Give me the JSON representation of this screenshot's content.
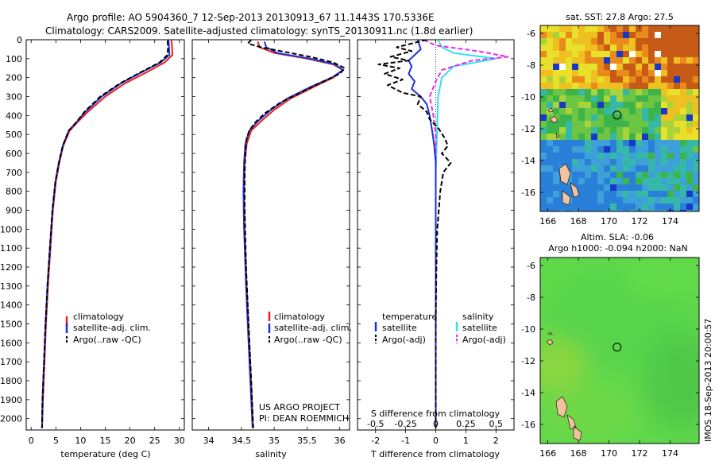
{
  "header": {
    "title_line1": "Argo profile: AO 5904360_7 12-Sep-2013 20130913_67 11.1443S 170.5336E",
    "title_line2": "Climatology: CARS2009. Satellite-adjusted climatology: synTS_20130911.nc (1.8d earlier)"
  },
  "colors": {
    "climatology": "#e8201e",
    "satellite": "#1f2fd9",
    "argo": "#000000",
    "sal_satellite": "#33e0f0",
    "sal_argo": "#e82ae8"
  },
  "chart_data": [
    {
      "type": "line",
      "id": "temperature-profile",
      "xlabel": "temperature (deg C)",
      "xlim": [
        -1,
        31
      ],
      "ylim": [
        2060,
        0
      ],
      "xticks": [
        "0",
        "5",
        "10",
        "15",
        "20",
        "25",
        "30"
      ],
      "yticks": [
        "0",
        "100",
        "200",
        "300",
        "400",
        "500",
        "600",
        "700",
        "800",
        "900",
        "1000",
        "1100",
        "1200",
        "1300",
        "1400",
        "1500",
        "1600",
        "1700",
        "1800",
        "1900",
        "2000"
      ],
      "legend": [
        "climatology",
        "satellite-adj. clim.",
        "Argo(..raw -QC)"
      ],
      "series": [
        {
          "name": "climatology",
          "color": "#e8201e",
          "points": [
            [
              28.4,
              0
            ],
            [
              28.5,
              40
            ],
            [
              28.6,
              80
            ],
            [
              27.0,
              120
            ],
            [
              23.5,
              170
            ],
            [
              19.0,
              230
            ],
            [
              15.0,
              300
            ],
            [
              11.5,
              380
            ],
            [
              9.2,
              440
            ],
            [
              7.8,
              480
            ],
            [
              6.5,
              560
            ],
            [
              5.7,
              650
            ],
            [
              5.0,
              750
            ],
            [
              4.4,
              900
            ],
            [
              3.9,
              1100
            ],
            [
              3.4,
              1300
            ],
            [
              3.0,
              1500
            ],
            [
              2.7,
              1700
            ],
            [
              2.4,
              1900
            ],
            [
              2.2,
              2050
            ]
          ]
        },
        {
          "name": "satellite-adj. clim.",
          "color": "#1f2fd9",
          "points": [
            [
              27.8,
              0
            ],
            [
              27.9,
              40
            ],
            [
              28.0,
              80
            ],
            [
              26.2,
              120
            ],
            [
              22.5,
              170
            ],
            [
              18.2,
              230
            ],
            [
              14.3,
              300
            ],
            [
              11.0,
              380
            ],
            [
              9.0,
              440
            ],
            [
              7.6,
              480
            ],
            [
              6.4,
              560
            ],
            [
              5.6,
              650
            ],
            [
              4.9,
              750
            ],
            [
              4.3,
              900
            ],
            [
              3.8,
              1100
            ],
            [
              3.3,
              1300
            ],
            [
              2.9,
              1500
            ],
            [
              2.6,
              1700
            ],
            [
              2.3,
              1900
            ],
            [
              2.2,
              2050
            ]
          ]
        },
        {
          "name": "Argo(..raw -QC)",
          "color": "#000000",
          "dashed": true,
          "points": [
            [
              27.6,
              5
            ],
            [
              27.7,
              40
            ],
            [
              27.6,
              80
            ],
            [
              26.0,
              120
            ],
            [
              22.3,
              170
            ],
            [
              18.0,
              230
            ],
            [
              14.0,
              300
            ],
            [
              10.8,
              380
            ],
            [
              9.0,
              440
            ],
            [
              7.6,
              480
            ],
            [
              6.4,
              560
            ],
            [
              5.6,
              650
            ],
            [
              4.9,
              750
            ],
            [
              4.3,
              900
            ],
            [
              3.8,
              1100
            ],
            [
              3.3,
              1300
            ],
            [
              2.9,
              1500
            ],
            [
              2.6,
              1700
            ],
            [
              2.3,
              1900
            ],
            [
              2.2,
              2050
            ]
          ]
        }
      ]
    },
    {
      "type": "line",
      "id": "salinity-profile",
      "xlabel": "salinity",
      "xlim": [
        33.75,
        36.15
      ],
      "ylim": [
        2060,
        0
      ],
      "xticks": [
        "34",
        "34.5",
        "35",
        "35.5",
        "36"
      ],
      "legend": [
        "climatology",
        "satellite-adj. clim.",
        "Argo(..raw -QC)"
      ],
      "annotation": [
        "US ARGO PROJECT",
        "PI: DEAN ROEMMICH"
      ],
      "series": [
        {
          "name": "climatology",
          "color": "#e8201e",
          "points": [
            [
              34.75,
              10
            ],
            [
              34.78,
              40
            ],
            [
              35.0,
              70
            ],
            [
              35.5,
              100
            ],
            [
              35.9,
              130
            ],
            [
              36.05,
              160
            ],
            [
              35.9,
              200
            ],
            [
              35.6,
              250
            ],
            [
              35.25,
              310
            ],
            [
              35.0,
              370
            ],
            [
              34.8,
              430
            ],
            [
              34.65,
              480
            ],
            [
              34.58,
              550
            ],
            [
              34.55,
              650
            ],
            [
              34.54,
              800
            ],
            [
              34.55,
              1000
            ],
            [
              34.58,
              1300
            ],
            [
              34.62,
              1600
            ],
            [
              34.66,
              1900
            ],
            [
              34.68,
              2050
            ]
          ]
        },
        {
          "name": "satellite-adj. clim.",
          "color": "#1f2fd9",
          "points": [
            [
              34.85,
              10
            ],
            [
              34.88,
              40
            ],
            [
              35.05,
              70
            ],
            [
              35.55,
              100
            ],
            [
              35.93,
              130
            ],
            [
              36.05,
              160
            ],
            [
              35.88,
              200
            ],
            [
              35.55,
              250
            ],
            [
              35.2,
              310
            ],
            [
              34.95,
              370
            ],
            [
              34.75,
              430
            ],
            [
              34.62,
              480
            ],
            [
              34.56,
              550
            ],
            [
              34.54,
              650
            ],
            [
              34.53,
              800
            ],
            [
              34.54,
              1000
            ],
            [
              34.57,
              1300
            ],
            [
              34.61,
              1600
            ],
            [
              34.65,
              1900
            ],
            [
              34.67,
              2050
            ]
          ]
        },
        {
          "name": "Argo(..raw -QC)",
          "color": "#000000",
          "dashed": true,
          "points": [
            [
              34.65,
              0
            ],
            [
              34.6,
              20
            ],
            [
              34.8,
              40
            ],
            [
              35.1,
              60
            ],
            [
              35.55,
              90
            ],
            [
              35.9,
              120
            ],
            [
              36.08,
              150
            ],
            [
              36.0,
              180
            ],
            [
              35.75,
              220
            ],
            [
              35.4,
              280
            ],
            [
              35.1,
              330
            ],
            [
              34.85,
              390
            ],
            [
              34.7,
              440
            ],
            [
              34.62,
              480
            ],
            [
              34.58,
              520
            ],
            [
              34.56,
              600
            ],
            [
              34.55,
              700
            ],
            [
              34.55,
              900
            ],
            [
              34.57,
              1200
            ],
            [
              34.61,
              1500
            ],
            [
              34.65,
              1800
            ],
            [
              34.68,
              2050
            ]
          ]
        }
      ]
    },
    {
      "type": "line",
      "id": "difference-profile",
      "xlabel": "T difference from climatology",
      "xlabel_top": "S difference from climatology",
      "xlim_T": [
        -2.6,
        2.6
      ],
      "xlim_S": [
        -0.65,
        0.65
      ],
      "ylim": [
        2060,
        0
      ],
      "xticks_T": [
        "-2",
        "-1",
        "0",
        "1",
        "2"
      ],
      "xticks_S": [
        "-0.5",
        "-0.25",
        "0",
        "0.25",
        "0.5"
      ],
      "legend_groups": [
        {
          "title": "temperature",
          "items": [
            "satellite",
            "Argo(-adj)"
          ]
        },
        {
          "title": "salinity",
          "items": [
            "satellite",
            "Argo(-adj)"
          ]
        }
      ],
      "series": [
        {
          "name": "temperature satellite",
          "axis": "T",
          "color": "#1f2fd9",
          "points": [
            [
              -0.6,
              0
            ],
            [
              -0.5,
              50
            ],
            [
              -0.7,
              80
            ],
            [
              -0.9,
              110
            ],
            [
              -0.8,
              140
            ],
            [
              -0.9,
              180
            ],
            [
              -0.7,
              220
            ],
            [
              -0.8,
              260
            ],
            [
              -0.5,
              300
            ],
            [
              -0.3,
              340
            ],
            [
              -0.2,
              400
            ],
            [
              -0.15,
              450
            ],
            [
              -0.1,
              500
            ],
            [
              -0.05,
              560
            ],
            [
              0,
              650
            ],
            [
              0,
              800
            ],
            [
              0,
              1000
            ],
            [
              0,
              1300
            ],
            [
              0,
              1600
            ],
            [
              0,
              1900
            ],
            [
              0,
              2050
            ]
          ]
        },
        {
          "name": "temperature Argo(-adj)",
          "axis": "T",
          "color": "#000000",
          "dashed": true,
          "points": [
            [
              -0.3,
              0
            ],
            [
              -1.3,
              40
            ],
            [
              -0.8,
              60
            ],
            [
              -1.5,
              90
            ],
            [
              -0.9,
              110
            ],
            [
              -1.9,
              130
            ],
            [
              -1.2,
              150
            ],
            [
              -1.7,
              180
            ],
            [
              -1.1,
              210
            ],
            [
              -1.6,
              240
            ],
            [
              -1.1,
              280
            ],
            [
              -0.5,
              300
            ],
            [
              -0.6,
              340
            ],
            [
              -0.3,
              380
            ],
            [
              -0.2,
              420
            ],
            [
              0.1,
              470
            ],
            [
              0.3,
              520
            ],
            [
              0.4,
              560
            ],
            [
              0.2,
              600
            ],
            [
              0.5,
              650
            ],
            [
              0.25,
              700
            ],
            [
              0.15,
              800
            ],
            [
              0.1,
              900
            ],
            [
              0.05,
              1000
            ],
            [
              0.02,
              1200
            ],
            [
              0,
              1500
            ],
            [
              0,
              2050
            ]
          ]
        },
        {
          "name": "salinity satellite",
          "axis": "S",
          "color": "#33e0f0",
          "points": [
            [
              0.02,
              0
            ],
            [
              0.05,
              40
            ],
            [
              0.15,
              70
            ],
            [
              0.5,
              100
            ],
            [
              0.15,
              140
            ],
            [
              0.05,
              200
            ],
            [
              0.02,
              300
            ],
            [
              0.01,
              500
            ],
            [
              0,
              700
            ],
            [
              0,
              1000
            ],
            [
              0,
              1500
            ],
            [
              0,
              2050
            ]
          ]
        },
        {
          "name": "salinity Argo(-adj)",
          "axis": "S",
          "color": "#e82ae8",
          "dashed": true,
          "points": [
            [
              -0.1,
              0
            ],
            [
              0,
              30
            ],
            [
              0.35,
              60
            ],
            [
              0.6,
              90
            ],
            [
              0.3,
              110
            ],
            [
              0.05,
              160
            ],
            [
              0,
              220
            ],
            [
              -0.05,
              300
            ],
            [
              -0.02,
              400
            ],
            [
              0,
              500
            ],
            [
              0,
              800
            ],
            [
              0,
              1200
            ],
            [
              0,
              2050
            ]
          ]
        }
      ]
    }
  ],
  "maps": {
    "sst": {
      "title": "sat. SST: 27.8 Argo: 27.5",
      "lon_ticks": [
        "166",
        "168",
        "170",
        "172",
        "174"
      ],
      "lat_ticks": [
        "-6",
        "-8",
        "-10",
        "-12",
        "-14",
        "-16"
      ],
      "lon_range": [
        165.5,
        175.9
      ],
      "lat_range": [
        -17.2,
        -5.5
      ],
      "argo_position": {
        "lon": 170.53,
        "lat": -11.14
      }
    },
    "sla": {
      "title_line1": "Altim. SLA: -0.06",
      "title_line2": "Argo h1000: -0.094 h2000: NaN",
      "lon_ticks": [
        "166",
        "168",
        "170",
        "172",
        "174"
      ],
      "lat_ticks": [
        "-6",
        "-8",
        "-10",
        "-12",
        "-14",
        "-16"
      ],
      "lon_range": [
        165.5,
        175.9
      ],
      "lat_range": [
        -17.2,
        -5.5
      ],
      "argo_position": {
        "lon": 170.53,
        "lat": -11.14
      }
    },
    "stamp": "IMOS 18-Sep-2013 20:00:57"
  }
}
